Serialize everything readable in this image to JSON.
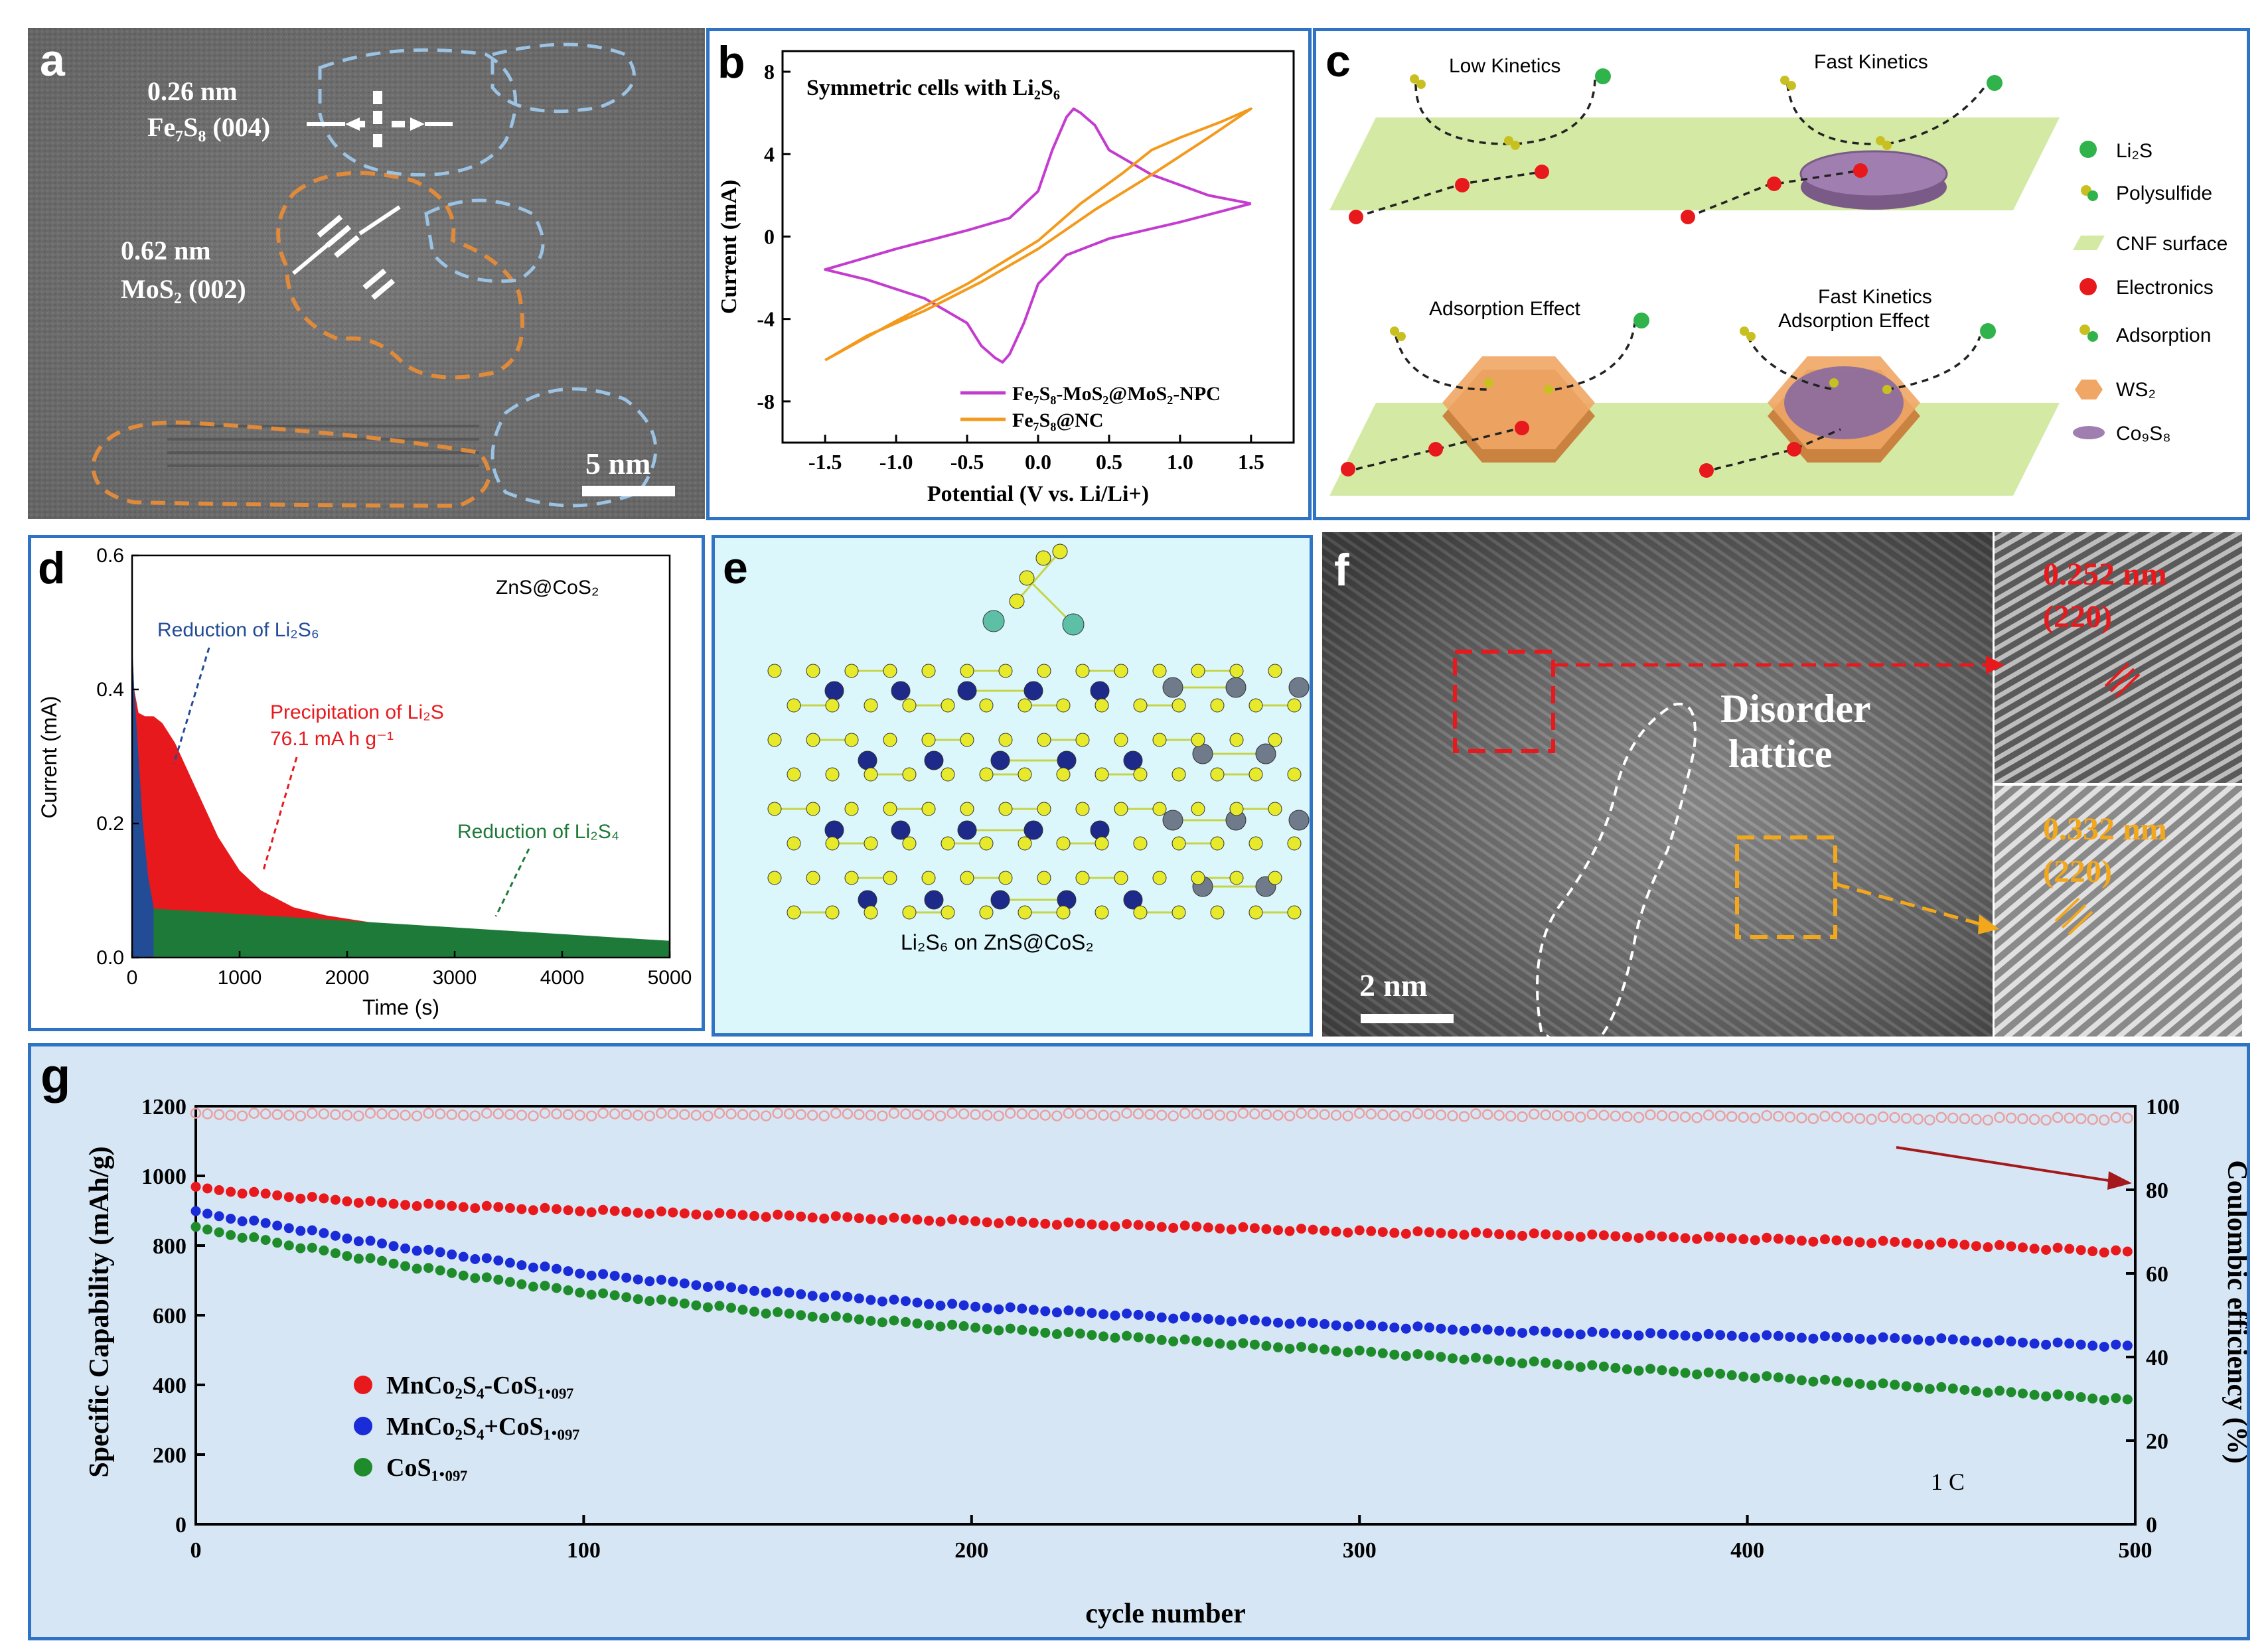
{
  "panel_a": {
    "label": "a",
    "d1_value": "0.26 nm",
    "d1_plane": "Fe₇S₈ (004)",
    "d2_value": "0.62 nm",
    "d2_plane": "MoS₂ (002)",
    "scale": "5 nm"
  },
  "panel_b": {
    "label": "b",
    "title": "Symmetric cells with Li₂S₆",
    "legend": [
      "Fe₇S₈-MoS₂@MoS₂-NPC",
      "Fe₇S₈@NC"
    ],
    "colors": [
      "#c43ccf",
      "#f39a1c"
    ]
  },
  "panel_c": {
    "label": "c",
    "captions": [
      "Low Kinetics",
      "Fast Kinetics",
      "Adsorption Effect",
      "Fast Kinetics",
      "Adsorption Effect"
    ],
    "legend": [
      "Li₂S",
      "Polysulfide",
      "CNF surface",
      "Electronics",
      "Adsorption",
      "WS₂",
      "Co₉S₈"
    ]
  },
  "panel_d": {
    "label": "d",
    "material": "ZnS@CoS₂",
    "ann_reduction_li2s6": "Reduction of Li₂S₆",
    "ann_precipitation": "Precipitation of Li₂S",
    "ann_capacity": "76.1 mA h g⁻¹",
    "ann_reduction_li2s4": "Reduction of Li₂S₄"
  },
  "panel_e": {
    "label": "e",
    "caption": "Li₂S₆ on ZnS@CoS₂"
  },
  "panel_f": {
    "label": "f",
    "text_disorder": "Disorder",
    "text_lattice": "lattice",
    "scale": "2 nm",
    "inset1_value": "0.252 nm",
    "inset1_plane": "(220)",
    "inset2_value": "0.332 nm",
    "inset2_plane": "(220)"
  },
  "panel_g": {
    "label": "g",
    "rate": "1 C",
    "legend": [
      "MnCo₂S₄-CoS₁.₀₉₇",
      "MnCo₂S₄+CoS₁.₀₉₇",
      "CoS₁.₀₉₇"
    ],
    "colors": [
      "#e8191c",
      "#1a2bd8",
      "#1f8c2c"
    ]
  },
  "chart_data": [
    {
      "type": "line",
      "panel": "b",
      "title": "Symmetric cells with Li2S6",
      "xlabel": "Potential (V vs. Li/Li+)",
      "ylabel": "Current (mA)",
      "xlim": [
        -1.8,
        1.8
      ],
      "ylim": [
        -10,
        9
      ],
      "xticks": [
        -1.5,
        -1.0,
        -0.5,
        0.0,
        0.5,
        1.0,
        1.5
      ],
      "xtick_labels": [
        "-1.5",
        "-1.0",
        "-0.5",
        "0.0",
        "0.5",
        "1.0",
        "1.5"
      ],
      "yticks": [
        -8,
        -4,
        0,
        4,
        8
      ],
      "series": [
        {
          "name": "Fe7S8-MoS2@MoS2-NPC",
          "color": "#c43ccf",
          "x": [
            1.5,
            1.2,
            0.8,
            0.5,
            0.4,
            0.3,
            0.25,
            0.2,
            0.1,
            0.0,
            -0.2,
            -0.5,
            -1.0,
            -1.5,
            -1.2,
            -0.8,
            -0.5,
            -0.4,
            -0.3,
            -0.25,
            -0.2,
            -0.1,
            0.0,
            0.2,
            0.5,
            1.0,
            1.5
          ],
          "y": [
            1.6,
            2.0,
            3.0,
            4.2,
            5.4,
            6.0,
            6.2,
            5.8,
            4.2,
            2.2,
            0.9,
            0.3,
            -0.6,
            -1.6,
            -2.1,
            -3.0,
            -4.2,
            -5.3,
            -5.9,
            -6.1,
            -5.7,
            -4.2,
            -2.3,
            -0.9,
            -0.1,
            0.7,
            1.6
          ]
        },
        {
          "name": "Fe7S8@NC",
          "color": "#f39a1c",
          "x": [
            -1.5,
            -1.0,
            -0.5,
            0.0,
            0.3,
            0.6,
            0.8,
            1.0,
            1.3,
            1.5,
            1.2,
            0.8,
            0.4,
            0.0,
            -0.4,
            -0.8,
            -1.2,
            -1.5
          ],
          "y": [
            -6.0,
            -4.1,
            -2.3,
            -0.2,
            1.6,
            3.1,
            4.2,
            4.8,
            5.6,
            6.2,
            4.8,
            3.0,
            1.3,
            -0.6,
            -2.2,
            -3.6,
            -4.8,
            -6.0
          ]
        }
      ]
    },
    {
      "type": "area",
      "panel": "d",
      "xlabel": "Time (s)",
      "ylabel": "Current (mA)",
      "xlim": [
        0,
        5000
      ],
      "ylim": [
        0,
        0.6
      ],
      "xticks": [
        0,
        1000,
        2000,
        3000,
        4000,
        5000
      ],
      "yticks": [
        0.0,
        0.2,
        0.4,
        0.6
      ],
      "ytick_labels": [
        "0.0",
        "0.2",
        "0.4",
        "0.6"
      ],
      "series": [
        {
          "name": "Reduction of Li2S4",
          "color": "#1e7a38",
          "x": [
            0,
            5000
          ],
          "y": [
            0.075,
            0.025
          ]
        },
        {
          "name": "Reduction of Li2S6",
          "color": "#224c96",
          "x": [
            0,
            20,
            60,
            100,
            150,
            200
          ],
          "y": [
            0.47,
            0.4,
            0.3,
            0.2,
            0.12,
            0.075
          ]
        },
        {
          "name": "Precipitation of Li2S",
          "color": "#e8191c",
          "x": [
            0,
            20,
            60,
            120,
            200,
            280,
            400,
            600,
            800,
            1000,
            1200,
            1500,
            1800,
            2200,
            2600
          ],
          "y": [
            0.47,
            0.4,
            0.365,
            0.36,
            0.36,
            0.35,
            0.32,
            0.25,
            0.18,
            0.13,
            0.1,
            0.075,
            0.063,
            0.053,
            0.045
          ]
        }
      ]
    },
    {
      "type": "scatter",
      "panel": "g",
      "xlabel": "cycle number",
      "ylabel": "Specific Capability (mAh/g)",
      "y2label": "Coulombic efficiency (%)",
      "xlim": [
        0,
        500
      ],
      "ylim": [
        0,
        1200
      ],
      "y2lim": [
        0,
        100
      ],
      "xticks": [
        0,
        100,
        200,
        300,
        400,
        500
      ],
      "yticks": [
        0,
        200,
        400,
        600,
        800,
        1000,
        1200
      ],
      "y2ticks": [
        0,
        20,
        40,
        60,
        80,
        100
      ],
      "series": [
        {
          "name": "Coulombic efficiency",
          "color": "#e9a0a0",
          "axis": "right",
          "x": [
            0,
            100,
            200,
            300,
            400,
            450,
            500
          ],
          "y": [
            98,
            98,
            98,
            98,
            97.5,
            97,
            97
          ]
        },
        {
          "name": "MnCo2S4-CoS1.097",
          "color": "#e8191c",
          "x": [
            0,
            25,
            50,
            75,
            100,
            150,
            200,
            250,
            300,
            350,
            400,
            450,
            500
          ],
          "y": [
            965,
            940,
            920,
            910,
            900,
            885,
            870,
            855,
            840,
            830,
            820,
            805,
            780
          ]
        },
        {
          "name": "MnCo2S4+CoS1.097",
          "color": "#1a2bd8",
          "x": [
            0,
            25,
            50,
            75,
            100,
            150,
            200,
            250,
            300,
            350,
            400,
            450,
            500
          ],
          "y": [
            895,
            850,
            800,
            760,
            720,
            665,
            625,
            595,
            570,
            550,
            540,
            530,
            510
          ]
        },
        {
          "name": "CoS1.097",
          "color": "#1f8c2c",
          "x": [
            0,
            25,
            50,
            75,
            100,
            150,
            200,
            250,
            300,
            350,
            400,
            450,
            500
          ],
          "y": [
            850,
            800,
            750,
            705,
            665,
            605,
            565,
            530,
            495,
            460,
            425,
            390,
            355
          ]
        }
      ]
    }
  ]
}
